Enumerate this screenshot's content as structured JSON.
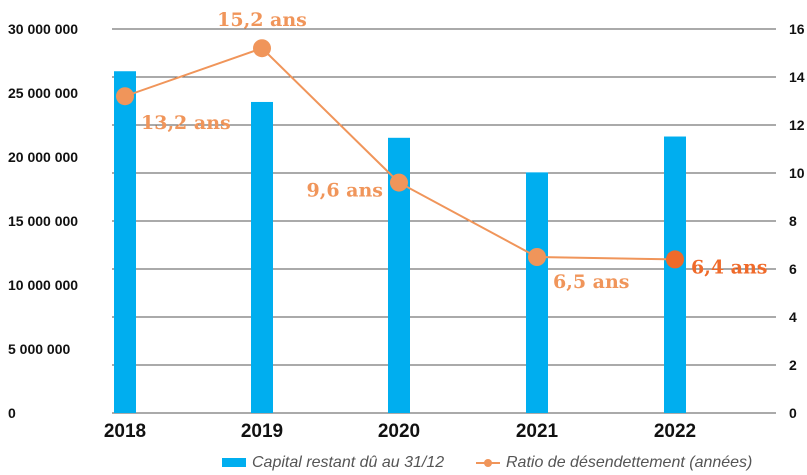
{
  "chart_data": {
    "type": "bar",
    "categories": [
      "2018",
      "2019",
      "2020",
      "2021",
      "2022"
    ],
    "series": [
      {
        "name": "Capital restant dû au 31/12",
        "kind": "bar",
        "axis": "left",
        "color": "#00aeef",
        "values": [
          26700000,
          24300000,
          21500000,
          18800000,
          21600000
        ]
      },
      {
        "name": "Ratio de désendettement (années)",
        "kind": "line",
        "axis": "right",
        "color": "#f0955a",
        "values": [
          13.2,
          15.2,
          9.6,
          6.5,
          6.4
        ],
        "labels": [
          "13,2 ans",
          "15,2 ans",
          "9,6 ans",
          "6,5 ans",
          "6,4 ans"
        ],
        "highlight_color": "#ef6a2a",
        "highlight_index": 4
      }
    ],
    "y_left": {
      "min": 0,
      "max": 30000000,
      "ticks": [
        0,
        5000000,
        10000000,
        15000000,
        20000000,
        25000000,
        30000000
      ],
      "tick_labels": [
        "0",
        "5 000 000",
        "10 000 000",
        "15 000 000",
        "20 000 000",
        "25 000 000",
        "30 000 000"
      ]
    },
    "y_right": {
      "min": 0,
      "max": 16,
      "ticks": [
        0,
        2,
        4,
        6,
        8,
        10,
        12,
        14,
        16
      ],
      "tick_labels": [
        "0",
        "2",
        "4",
        "6",
        "8",
        "10",
        "12",
        "14",
        "16"
      ]
    },
    "grid": true,
    "legend_position": "bottom-right",
    "title": "",
    "xlabel": "",
    "ylabel": ""
  }
}
